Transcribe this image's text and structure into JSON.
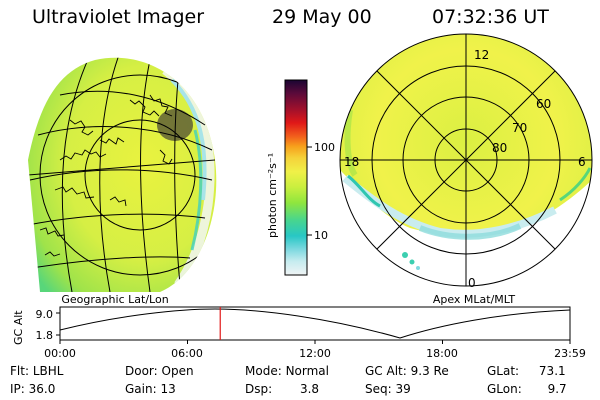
{
  "header": {
    "instrument": "Ultraviolet Imager",
    "date": "29 May 00",
    "time": "07:32:36 UT"
  },
  "left_panel": {
    "caption": "Geographic Lat/Lon"
  },
  "right_panel": {
    "caption": "Apex MLat/MLT",
    "mlt_labels": [
      "12",
      "18",
      "6",
      "0"
    ],
    "mlat_labels": [
      "60",
      "70",
      "80"
    ]
  },
  "colorbar": {
    "unit_label": "photon cm⁻²s⁻¹",
    "tick_labels": [
      "100",
      "10"
    ],
    "colors": [
      "#1a0533",
      "#5c0a3a",
      "#a0102c",
      "#e01818",
      "#f2601c",
      "#f7a01c",
      "#f5d23a",
      "#f0f048",
      "#c9ef3f",
      "#8fe63e",
      "#47d58f",
      "#28c7c5",
      "#7fd9e0",
      "#c6ecef",
      "#f0f4f5"
    ]
  },
  "altitude_plot": {
    "ylabel": "GC Alt",
    "y_ticks": [
      "9.0",
      "1.8"
    ],
    "x_ticks": [
      "00:00",
      "06:00",
      "12:00",
      "18:00",
      "23:59"
    ],
    "current_time_hours": 7.54
  },
  "status": {
    "flt_label": "Flt:",
    "flt_value": "LBHL",
    "ip_label": "IP:",
    "ip_value": "36.0",
    "door_label": "Door:",
    "door_value": "Open",
    "gain_label": "Gain:",
    "gain_value": "13",
    "mode_label": "Mode:",
    "mode_value": "Normal",
    "dsp_label": "Dsp:",
    "dsp_value": "3.8",
    "gcalt_label": "GC Alt:",
    "gcalt_value": "9.3 Re",
    "seq_label": "Seq:",
    "seq_value": "39",
    "glat_label": "GLat:",
    "glat_value": "73.1",
    "glon_label": "GLon:",
    "glon_value": "9.7"
  }
}
